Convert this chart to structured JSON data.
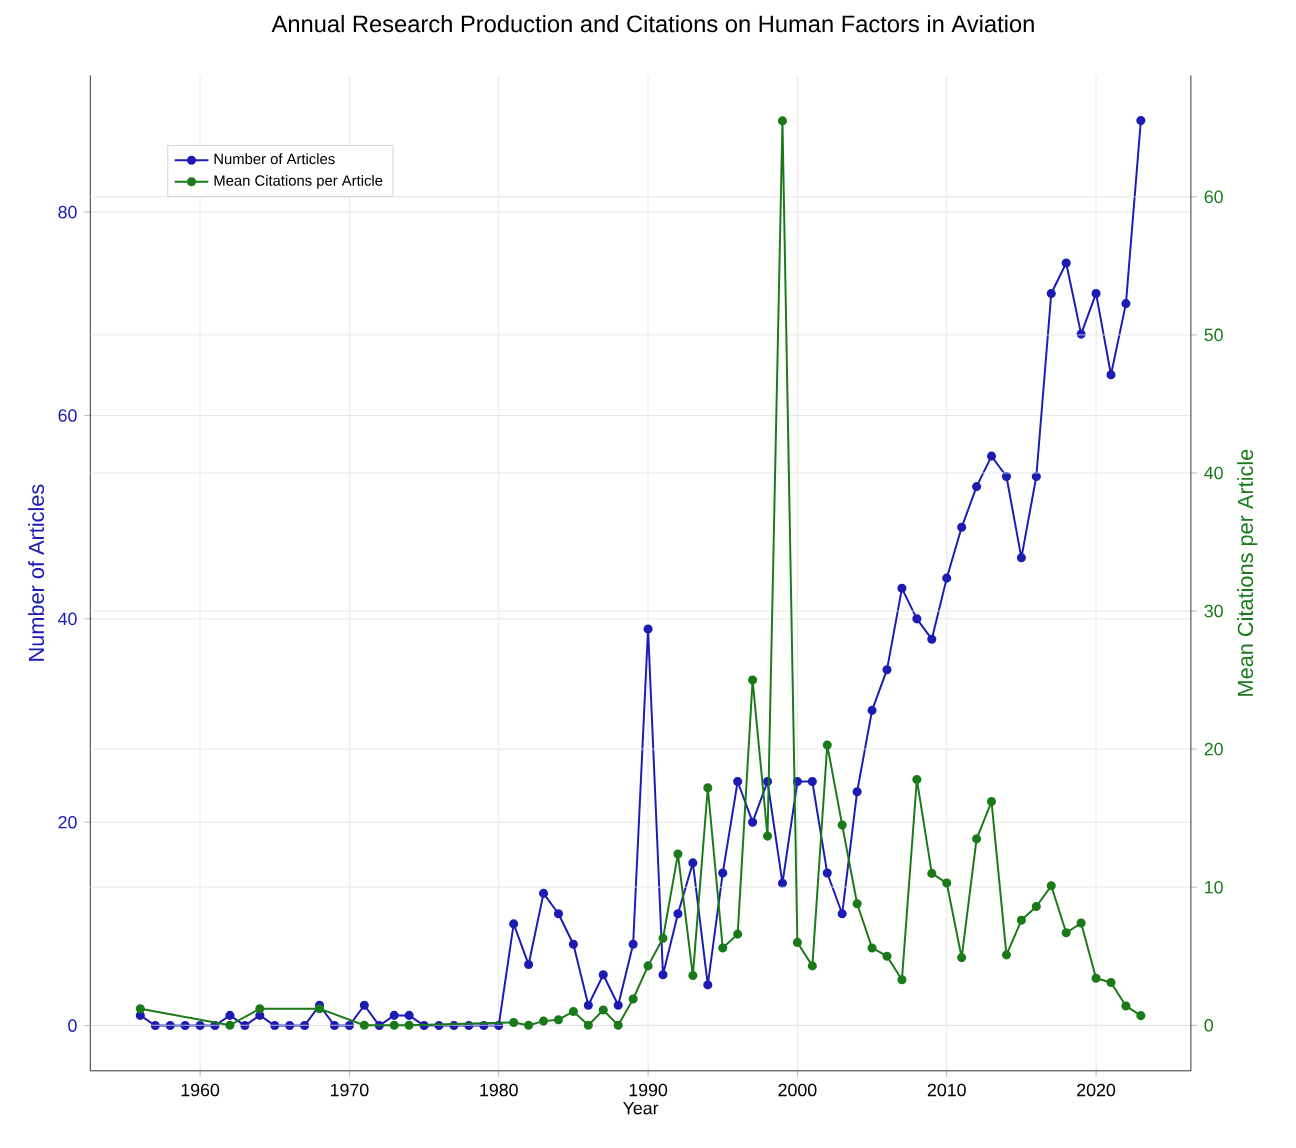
{
  "chart_data": {
    "type": "line",
    "title": "Annual Research Production and Citations on Human Factors in Aviation",
    "xlabel": "Year",
    "ylabel": "Number of Articles",
    "y2label": "Mean Citations per Article",
    "xlim": [
      1952.65,
      2026.35
    ],
    "xticks": [
      1960,
      1970,
      1980,
      1990,
      2000,
      2010,
      2020
    ],
    "ylim": [
      -4.45,
      93.45
    ],
    "yticks": [
      0,
      20,
      40,
      60,
      80
    ],
    "y2lim": [
      -3.3,
      68.8
    ],
    "y2ticks": [
      0,
      10,
      20,
      30,
      40,
      50,
      60
    ],
    "grid": true,
    "legend": "top left",
    "marker": "circle",
    "line_style": "solid",
    "series": [
      {
        "name": "Number of Articles",
        "color": "#1c1cb4",
        "x": [
          1956,
          1957,
          1958,
          1959,
          1960,
          1961,
          1962,
          1963,
          1964,
          1965,
          1966,
          1967,
          1968,
          1969,
          1970,
          1971,
          1972,
          1973,
          1974,
          1975,
          1976,
          1977,
          1978,
          1979,
          1980,
          1981,
          1982,
          1983,
          1984,
          1985,
          1986,
          1987,
          1988,
          1989,
          1990,
          1991,
          1992,
          1993,
          1994,
          1995,
          1996,
          1997,
          1998,
          1999,
          2000,
          2001,
          2002,
          2003,
          2004,
          2005,
          2006,
          2007,
          2008,
          2009,
          2010,
          2011,
          2012,
          2013,
          2014,
          2015,
          2016,
          2017,
          2018,
          2019,
          2020,
          2021,
          2022,
          2023
        ],
        "values": [
          1,
          0,
          0,
          0,
          0,
          0,
          1,
          0,
          1,
          0,
          0,
          0,
          2,
          0,
          0,
          2,
          0,
          1,
          1,
          0,
          0,
          0,
          0,
          0,
          0,
          10,
          6,
          13,
          11,
          8,
          2,
          5,
          2,
          8,
          39,
          5,
          11,
          16,
          4,
          15,
          24,
          20,
          24,
          14,
          24,
          24,
          15,
          11,
          23,
          31,
          35,
          43,
          40,
          38,
          44,
          49,
          53,
          56,
          54,
          46,
          54,
          72,
          75,
          68,
          72,
          64,
          71,
          89
        ]
      },
      {
        "name": "Mean Citations per Article",
        "color": "#1a7a1a",
        "axis": "y2",
        "x": [
          1956,
          1962,
          1964,
          1968,
          1971,
          1973,
          1974,
          1981,
          1982,
          1983,
          1984,
          1985,
          1986,
          1987,
          1988,
          1989,
          1990,
          1991,
          1992,
          1993,
          1994,
          1995,
          1996,
          1997,
          1998,
          1999,
          2000,
          2001,
          2002,
          2003,
          2004,
          2005,
          2006,
          2007,
          2008,
          2009,
          2010,
          2011,
          2012,
          2013,
          2014,
          2015,
          2016,
          2017,
          2018,
          2019,
          2020,
          2021,
          2022,
          2023
        ],
        "values": [
          1.2,
          0,
          1.2,
          1.2,
          0,
          0,
          0,
          0.2,
          0,
          0.3,
          0.4,
          1,
          0,
          1.1,
          0,
          1.9,
          4.3,
          6.3,
          12.4,
          3.6,
          17.2,
          5.6,
          6.6,
          25,
          13.7,
          65.5,
          6,
          4.3,
          20.3,
          14.5,
          8.8,
          5.6,
          5,
          3.3,
          17.8,
          11,
          10.3,
          4.9,
          13.5,
          16.2,
          5.1,
          7.6,
          8.6,
          10.1,
          6.7,
          7.4,
          3.4,
          3.1,
          1.4,
          0.7
        ]
      }
    ]
  }
}
